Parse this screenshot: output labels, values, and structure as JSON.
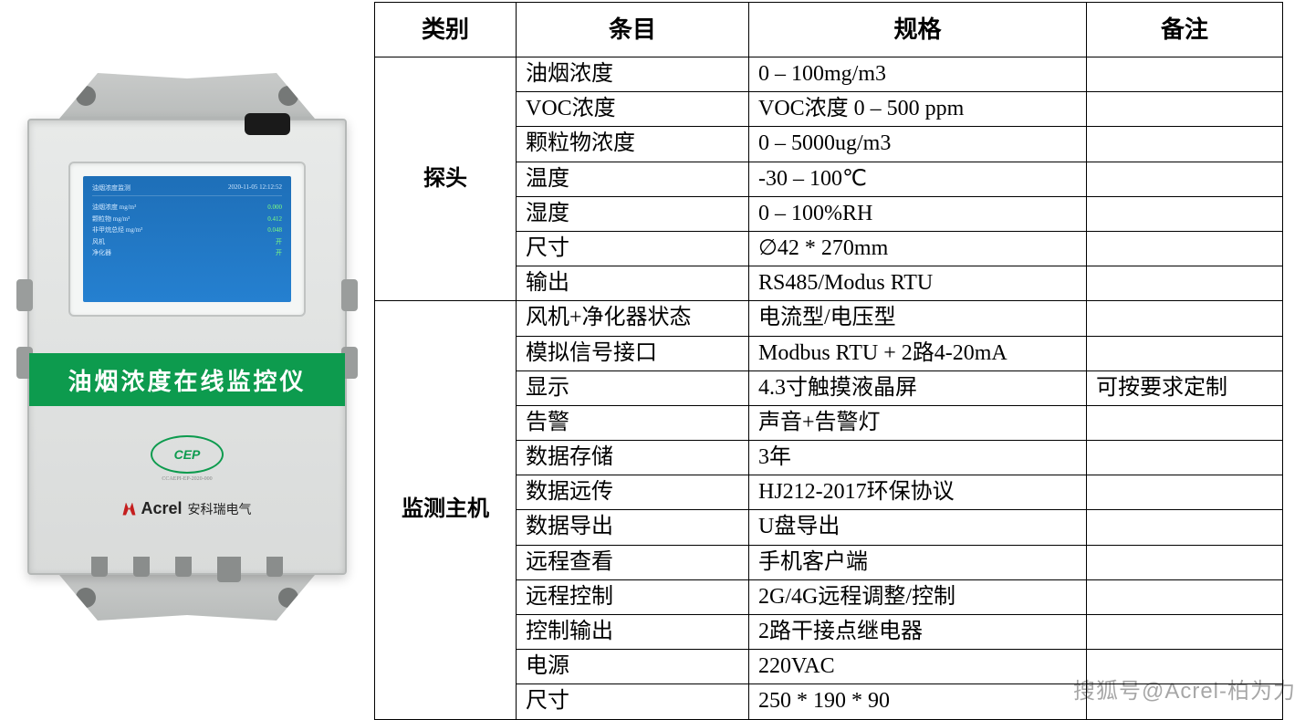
{
  "device": {
    "label_strip": "油烟浓度在线监控仪",
    "cep_text": "CEP",
    "cep_sub": "CCAEPI-EP-2020-000",
    "brand_en": "Acrel",
    "brand_cn": "安科瑞电气",
    "screen": {
      "title": "油烟浓度监测",
      "datetime": "2020-11-05 12:12:52",
      "rows": [
        {
          "label": "油烟浓度 mg/m³",
          "value": "0.000"
        },
        {
          "label": "颗粒物 mg/m³",
          "value": "0.412"
        },
        {
          "label": "非甲烷总烃 mg/m³",
          "value": "0.048"
        },
        {
          "label": "风机",
          "value": "开"
        },
        {
          "label": "净化器",
          "value": "开"
        }
      ]
    }
  },
  "table": {
    "headers": {
      "category": "类别",
      "item": "条目",
      "spec": "规格",
      "note": "备注"
    },
    "sections": [
      {
        "category": "探头",
        "rows": [
          {
            "item": "油烟浓度",
            "spec": "0 – 100mg/m3",
            "note": ""
          },
          {
            "item": "VOC浓度",
            "spec": "VOC浓度 0 – 500 ppm",
            "note": ""
          },
          {
            "item": "颗粒物浓度",
            "spec": "0 – 5000ug/m3",
            "note": ""
          },
          {
            "item": "温度",
            "spec": "-30 – 100℃",
            "note": ""
          },
          {
            "item": "湿度",
            "spec": "0 – 100%RH",
            "note": ""
          },
          {
            "item": "尺寸",
            "spec": "∅42 * 270mm",
            "note": ""
          },
          {
            "item": "输出",
            "spec": "RS485/Modus RTU",
            "note": ""
          }
        ]
      },
      {
        "category": "监测主机",
        "rows": [
          {
            "item": "风机+净化器状态",
            "spec": "电流型/电压型",
            "note": ""
          },
          {
            "item": "模拟信号接口",
            "spec": "Modbus RTU + 2路4-20mA",
            "note": ""
          },
          {
            "item": "显示",
            "spec": "4.3寸触摸液晶屏",
            "note": "可按要求定制"
          },
          {
            "item": "告警",
            "spec": "声音+告警灯",
            "note": ""
          },
          {
            "item": "数据存储",
            "spec": "3年",
            "note": ""
          },
          {
            "item": "数据远传",
            "spec": "HJ212-2017环保协议",
            "note": ""
          },
          {
            "item": "数据导出",
            "spec": "U盘导出",
            "note": ""
          },
          {
            "item": "远程查看",
            "spec": "手机客户端",
            "note": ""
          },
          {
            "item": "远程控制",
            "spec": "2G/4G远程调整/控制",
            "note": ""
          },
          {
            "item": "控制输出",
            "spec": "2路干接点继电器",
            "note": ""
          },
          {
            "item": "电源",
            "spec": "220VAC",
            "note": ""
          },
          {
            "item": "尺寸",
            "spec": "250 * 190 * 90",
            "note": ""
          }
        ]
      }
    ]
  },
  "watermark": "搜狐号@Acrel-柏为力"
}
